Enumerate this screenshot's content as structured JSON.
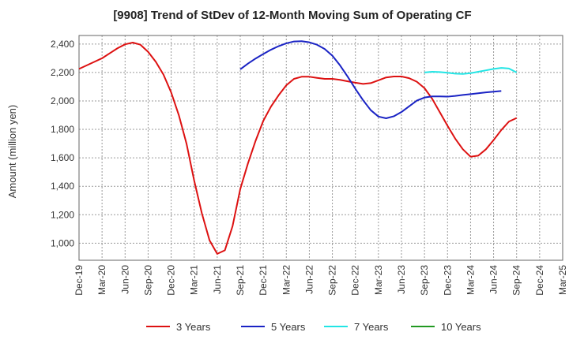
{
  "chart_data": {
    "type": "line",
    "title": "[9908]  Trend of StDev of 12-Month Moving Sum of Operating CF",
    "ylabel": "Amount (million yen)",
    "xlabel": "",
    "ylim": [
      880,
      2460
    ],
    "yticks": [
      1000,
      1200,
      1400,
      1600,
      1800,
      2000,
      2200,
      2400
    ],
    "ytick_labels": [
      "1,000",
      "1,200",
      "1,400",
      "1,600",
      "1,800",
      "2,000",
      "2,200",
      "2,400"
    ],
    "xtick_labels": [
      "Dec-19",
      "Mar-20",
      "Jun-20",
      "Sep-20",
      "Dec-20",
      "Mar-21",
      "Jun-21",
      "Sep-21",
      "Dec-21",
      "Mar-22",
      "Jun-22",
      "Sep-22",
      "Dec-22",
      "Mar-23",
      "Jun-23",
      "Sep-23",
      "Dec-23",
      "Mar-24",
      "Jun-24",
      "Sep-24",
      "Dec-24",
      "Mar-25"
    ],
    "grid": true,
    "legend_position": "bottom",
    "x_months": [
      "Dec-19",
      "Jan-20",
      "Feb-20",
      "Mar-20",
      "Apr-20",
      "May-20",
      "Jun-20",
      "Jul-20",
      "Aug-20",
      "Sep-20",
      "Oct-20",
      "Nov-20",
      "Dec-20",
      "Jan-21",
      "Feb-21",
      "Mar-21",
      "Apr-21",
      "May-21",
      "Jun-21",
      "Jul-21",
      "Aug-21",
      "Sep-21",
      "Oct-21",
      "Nov-21",
      "Dec-21",
      "Jan-22",
      "Feb-22",
      "Mar-22",
      "Apr-22",
      "May-22",
      "Jun-22",
      "Jul-22",
      "Aug-22",
      "Sep-22",
      "Oct-22",
      "Nov-22",
      "Dec-22",
      "Jan-23",
      "Feb-23",
      "Mar-23",
      "Apr-23",
      "May-23",
      "Jun-23",
      "Jul-23",
      "Aug-23",
      "Sep-23",
      "Oct-23",
      "Nov-23",
      "Dec-23",
      "Jan-24",
      "Feb-24",
      "Mar-24",
      "Apr-24",
      "May-24",
      "Jun-24",
      "Jul-24",
      "Aug-24",
      "Sep-24",
      "Oct-24",
      "Nov-24",
      "Dec-24",
      "Jan-25",
      "Feb-25",
      "Mar-25"
    ],
    "series": [
      {
        "name": "3 Years",
        "color": "#dd1111",
        "start": "Dec-19",
        "values": [
          2225,
          2250,
          2275,
          2300,
          2335,
          2370,
          2398,
          2410,
          2395,
          2345,
          2275,
          2185,
          2060,
          1900,
          1700,
          1440,
          1210,
          1020,
          925,
          950,
          1120,
          1380,
          1560,
          1720,
          1860,
          1960,
          2040,
          2110,
          2155,
          2170,
          2170,
          2162,
          2155,
          2155,
          2148,
          2138,
          2128,
          2120,
          2125,
          2145,
          2165,
          2172,
          2172,
          2160,
          2135,
          2090,
          2015,
          1920,
          1825,
          1735,
          1660,
          1608,
          1615,
          1660,
          1725,
          1795,
          1855,
          1880
        ]
      },
      {
        "name": "5 Years",
        "color": "#1a23c4",
        "start": "Sep-21",
        "values": [
          2222,
          2262,
          2298,
          2330,
          2360,
          2385,
          2405,
          2418,
          2420,
          2412,
          2395,
          2365,
          2318,
          2250,
          2170,
          2085,
          2005,
          1935,
          1890,
          1878,
          1892,
          1922,
          1962,
          2002,
          2024,
          2032,
          2032,
          2030,
          2035,
          2042,
          2048,
          2054,
          2060,
          2065,
          2070
        ]
      },
      {
        "name": "7 Years",
        "color": "#22e5e5",
        "start": "Sep-23",
        "values": [
          2200,
          2205,
          2203,
          2198,
          2192,
          2190,
          2195,
          2205,
          2215,
          2225,
          2232,
          2228,
          2200
        ]
      },
      {
        "name": "10 Years",
        "color": "#229922",
        "start": "Sep-24",
        "values": []
      }
    ]
  }
}
